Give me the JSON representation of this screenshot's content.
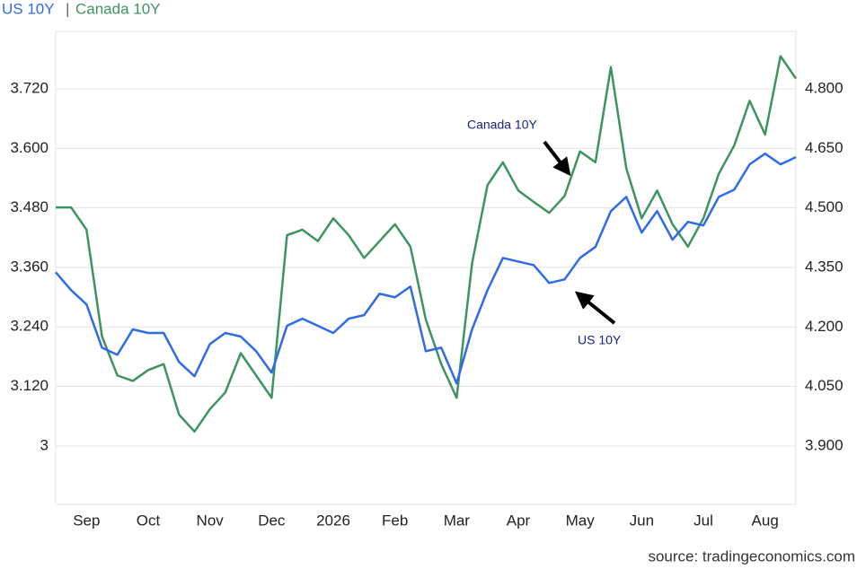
{
  "chart_data": {
    "type": "line",
    "legend_separator": "|",
    "source": "source: tradingeconomics.com",
    "categories": [
      null,
      null,
      "Sep",
      null,
      null,
      null,
      "Oct",
      null,
      null,
      null,
      "Nov",
      null,
      null,
      null,
      "Dec",
      null,
      null,
      null,
      "2026",
      null,
      null,
      null,
      "Feb",
      null,
      null,
      null,
      "Mar",
      null,
      null,
      null,
      "Apr",
      null,
      null,
      null,
      "May",
      null,
      null,
      null,
      "Jun",
      null,
      null,
      null,
      "Jul",
      null,
      null,
      null,
      "Aug",
      null,
      null
    ],
    "series": [
      {
        "name": "US 10Y",
        "color": "#2f6be8",
        "axis": "y2",
        "values": [
          4.338,
          4.293,
          4.257,
          4.148,
          4.13,
          4.194,
          4.185,
          4.185,
          4.112,
          4.076,
          4.157,
          4.185,
          4.176,
          4.139,
          4.085,
          4.203,
          4.221,
          4.203,
          4.185,
          4.221,
          4.23,
          4.284,
          4.275,
          4.302,
          4.139,
          4.148,
          4.058,
          4.194,
          4.293,
          4.374,
          4.365,
          4.356,
          4.311,
          4.32,
          4.374,
          4.402,
          4.492,
          4.528,
          4.438,
          4.492,
          4.42,
          4.465,
          4.456,
          4.528,
          4.546,
          4.61,
          4.637,
          4.61,
          4.628
        ]
      },
      {
        "name": "Canada 10Y",
        "color": "#3e9460",
        "values": [
          3.481,
          3.481,
          3.436,
          3.221,
          3.142,
          3.131,
          3.153,
          3.165,
          3.063,
          3.029,
          3.074,
          3.108,
          3.187,
          3.142,
          3.097,
          3.425,
          3.436,
          3.413,
          3.459,
          3.425,
          3.379,
          3.413,
          3.447,
          3.402,
          3.255,
          3.165,
          3.097,
          3.368,
          3.526,
          3.572,
          3.515,
          3.492,
          3.47,
          3.504,
          3.594,
          3.572,
          3.764,
          3.56,
          3.459,
          3.515,
          3.447,
          3.402,
          3.459,
          3.549,
          3.606,
          3.696,
          3.628,
          3.786,
          3.741
        ]
      }
    ],
    "ylim": [
      2.882,
      3.836
    ],
    "yticks": [
      3,
      {
        "value": 3.12,
        "label": "3.120"
      },
      {
        "value": 3.24,
        "label": "3.240"
      },
      {
        "value": 3.36,
        "label": "3.360"
      },
      {
        "value": 3.48,
        "label": "3.480"
      },
      {
        "value": 3.6,
        "label": "3.600"
      },
      {
        "value": 3.72,
        "label": "3.720"
      }
    ],
    "y2lim": [
      3.753,
      4.945
    ],
    "y2ticks": [
      {
        "value": 3.9,
        "label": "3.900"
      },
      {
        "value": 4.05,
        "label": "4.050"
      },
      {
        "value": 4.2,
        "label": "4.200"
      },
      {
        "value": 4.35,
        "label": "4.350"
      },
      {
        "value": 4.5,
        "label": "4.500"
      },
      {
        "value": 4.65,
        "label": "4.650"
      },
      {
        "value": 4.8,
        "label": "4.800"
      }
    ],
    "grid": true,
    "annotations": [
      {
        "text": "Canada 10Y"
      },
      {
        "text": "US 10Y"
      }
    ]
  }
}
